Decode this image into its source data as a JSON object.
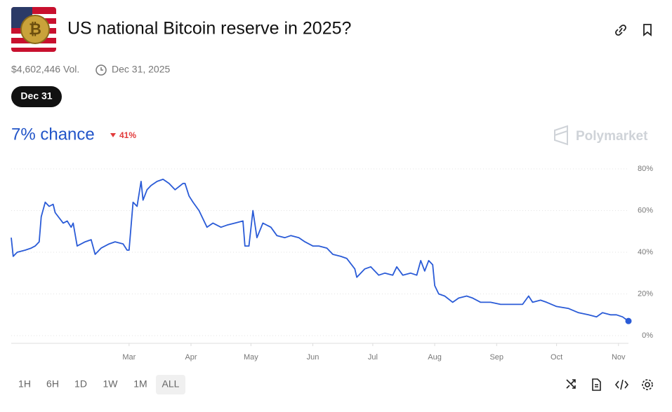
{
  "header": {
    "title": "US national Bitcoin reserve in 2025?",
    "volume": "$4,602,446 Vol.",
    "end_date": "Dec 31, 2025",
    "date_pill": "Dec 31",
    "chance": "7% chance",
    "change": "41%",
    "brand": "Polymarket"
  },
  "chart_data": {
    "type": "line",
    "x": [
      1,
      2,
      4,
      8,
      11,
      13,
      15,
      16,
      18,
      20,
      22,
      23,
      27,
      29,
      31,
      32,
      34,
      38,
      41,
      43,
      46,
      50,
      53,
      57,
      59,
      60,
      62,
      64,
      66,
      67,
      69,
      71,
      74,
      77,
      80,
      83,
      87,
      88,
      90,
      92,
      95,
      99,
      102,
      106,
      109,
      113,
      117,
      118,
      120,
      122,
      124,
      127,
      131,
      134,
      138,
      141,
      145,
      148,
      152,
      155,
      159,
      162,
      166,
      169,
      173,
      174,
      178,
      181,
      185,
      188,
      192,
      194,
      197,
      201,
      204,
      206,
      208,
      210,
      212,
      213,
      215,
      218,
      222,
      225,
      229,
      232,
      236,
      241,
      246,
      252,
      257,
      260,
      262,
      266,
      269,
      274,
      280,
      285,
      290,
      294,
      297,
      301,
      304,
      307,
      310
    ],
    "series": [
      {
        "name": "Yes",
        "color": "#2a5bd7",
        "values": [
          47,
          38,
          40,
          41,
          42,
          43,
          45,
          57,
          64,
          62,
          63,
          59,
          54,
          55,
          52,
          54,
          43,
          45,
          46,
          39,
          42,
          44,
          45,
          44,
          41,
          41,
          64,
          62,
          74,
          65,
          70,
          72,
          74,
          75,
          73,
          70,
          73,
          73,
          67,
          64,
          60,
          52,
          54,
          52,
          53,
          54,
          55,
          43,
          43,
          60,
          47,
          54,
          52,
          48,
          47,
          48,
          47,
          45,
          43,
          43,
          42,
          39,
          38,
          37,
          32,
          28,
          32,
          33,
          29,
          30,
          29,
          33,
          29,
          30,
          29,
          36,
          31,
          36,
          34,
          24,
          20,
          19,
          16,
          18,
          19,
          18,
          16,
          16,
          15,
          15,
          15,
          19,
          16,
          17,
          16,
          14,
          13,
          11,
          10,
          9,
          11,
          10,
          10,
          9,
          7
        ]
      }
    ],
    "xlim": [
      1,
      310
    ],
    "xticks": [
      {
        "value": 60,
        "label": "Mar"
      },
      {
        "value": 91,
        "label": "Apr"
      },
      {
        "value": 121,
        "label": "May"
      },
      {
        "value": 152,
        "label": "Jun"
      },
      {
        "value": 182,
        "label": "Jul"
      },
      {
        "value": 213,
        "label": "Aug"
      },
      {
        "value": 244,
        "label": "Sep"
      },
      {
        "value": 274,
        "label": "Oct"
      },
      {
        "value": 305,
        "label": "Nov"
      }
    ],
    "ylim": [
      0,
      80
    ],
    "yticks": [
      {
        "value": 0,
        "label": "0%"
      },
      {
        "value": 20,
        "label": "20%"
      },
      {
        "value": 40,
        "label": "40%"
      },
      {
        "value": 60,
        "label": "60%"
      },
      {
        "value": 80,
        "label": "80%"
      }
    ],
    "grid": true
  },
  "ranges": [
    "1H",
    "6H",
    "1D",
    "1W",
    "1M",
    "ALL"
  ]
}
